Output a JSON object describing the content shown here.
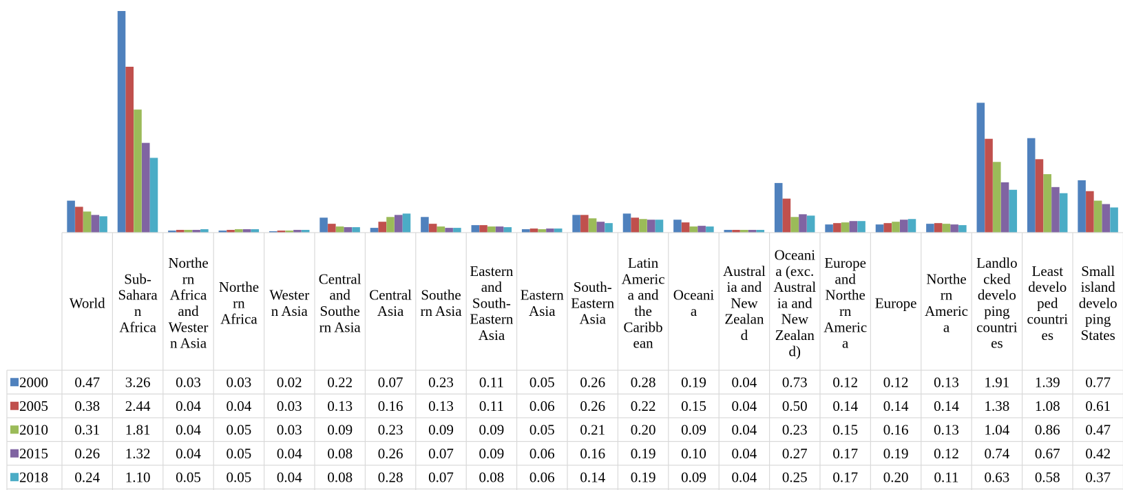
{
  "chart_data": {
    "type": "bar",
    "categories": [
      "World",
      "Sub-Saharan Africa",
      "Northern Africa and Western Asia",
      "Northern Africa",
      "Western Asia",
      "Central and Southern Asia",
      "Central Asia",
      "Southern Asia",
      "Eastern and South-Eastern Asia",
      "Eastern Asia",
      "South-Eastern Asia",
      "Latin America and the Caribbean",
      "Oceania",
      "Australia and New Zealand",
      "Oceania (exc. Australia and New Zealand)",
      "Europe and Northern America",
      "Europe",
      "Northern America",
      "Landlocked developing countries",
      "Least developed countries",
      "Small island developing States"
    ],
    "category_lines": [
      [
        "World"
      ],
      [
        "Sub-",
        "Sahara",
        "n",
        "Africa"
      ],
      [
        "Northe",
        "rn",
        "Africa",
        "and",
        "Wester",
        "n Asia"
      ],
      [
        "Northe",
        "rn",
        "Africa"
      ],
      [
        "Wester",
        "n Asia"
      ],
      [
        "Central",
        "and",
        "Southe",
        "rn Asia"
      ],
      [
        "Central",
        "Asia"
      ],
      [
        "Southe",
        "rn Asia"
      ],
      [
        "Eastern",
        "and",
        "South-",
        "Eastern",
        "Asia"
      ],
      [
        "Eastern",
        "Asia"
      ],
      [
        "South-",
        "Eastern",
        "Asia"
      ],
      [
        "Latin",
        "Americ",
        "a and",
        "the",
        "Caribb",
        "ean"
      ],
      [
        "Oceani",
        "a"
      ],
      [
        "Austral",
        "ia and",
        "New",
        "Zealan",
        "d"
      ],
      [
        "Oceani",
        "a (exc.",
        "Austral",
        "ia and",
        "New",
        "Zealan",
        "d)"
      ],
      [
        "Europe",
        "and",
        "Northe",
        "rn",
        "Americ",
        "a"
      ],
      [
        "Europe"
      ],
      [
        "Northe",
        "rn",
        "Americ",
        "a"
      ],
      [
        "Landlo",
        "cked",
        "develo",
        "ping",
        "countri",
        "es"
      ],
      [
        "Least",
        "develo",
        "ped",
        "countri",
        "es"
      ],
      [
        "Small",
        "island",
        "develo",
        "ping",
        "States"
      ]
    ],
    "series": [
      {
        "name": "2000",
        "color": "#4F81BD",
        "values": [
          0.47,
          3.26,
          0.03,
          0.03,
          0.02,
          0.22,
          0.07,
          0.23,
          0.11,
          0.05,
          0.26,
          0.28,
          0.19,
          0.04,
          0.73,
          0.12,
          0.12,
          0.13,
          1.91,
          1.39,
          0.77
        ]
      },
      {
        "name": "2005",
        "color": "#C0504D",
        "values": [
          0.38,
          2.44,
          0.04,
          0.04,
          0.03,
          0.13,
          0.16,
          0.13,
          0.11,
          0.06,
          0.26,
          0.22,
          0.15,
          0.04,
          0.5,
          0.14,
          0.14,
          0.14,
          1.38,
          1.08,
          0.61
        ]
      },
      {
        "name": "2010",
        "color": "#9BBB59",
        "values": [
          0.31,
          1.81,
          0.04,
          0.05,
          0.03,
          0.09,
          0.23,
          0.09,
          0.09,
          0.05,
          0.21,
          0.2,
          0.09,
          0.04,
          0.23,
          0.15,
          0.16,
          0.13,
          1.04,
          0.86,
          0.47
        ]
      },
      {
        "name": "2015",
        "color": "#8064A2",
        "values": [
          0.26,
          1.32,
          0.04,
          0.05,
          0.04,
          0.08,
          0.26,
          0.07,
          0.09,
          0.06,
          0.16,
          0.19,
          0.1,
          0.04,
          0.27,
          0.17,
          0.19,
          0.12,
          0.74,
          0.67,
          0.42
        ]
      },
      {
        "name": "2018",
        "color": "#4BACC6",
        "values": [
          0.24,
          1.1,
          0.05,
          0.05,
          0.04,
          0.08,
          0.28,
          0.07,
          0.08,
          0.06,
          0.14,
          0.19,
          0.09,
          0.04,
          0.25,
          0.17,
          0.2,
          0.11,
          0.63,
          0.58,
          0.37
        ]
      }
    ],
    "title": "",
    "xlabel": "",
    "ylabel": "",
    "ylim": [
      0,
      3.26
    ],
    "grid": false,
    "legend": "data table rows (left)",
    "data_table": true
  }
}
